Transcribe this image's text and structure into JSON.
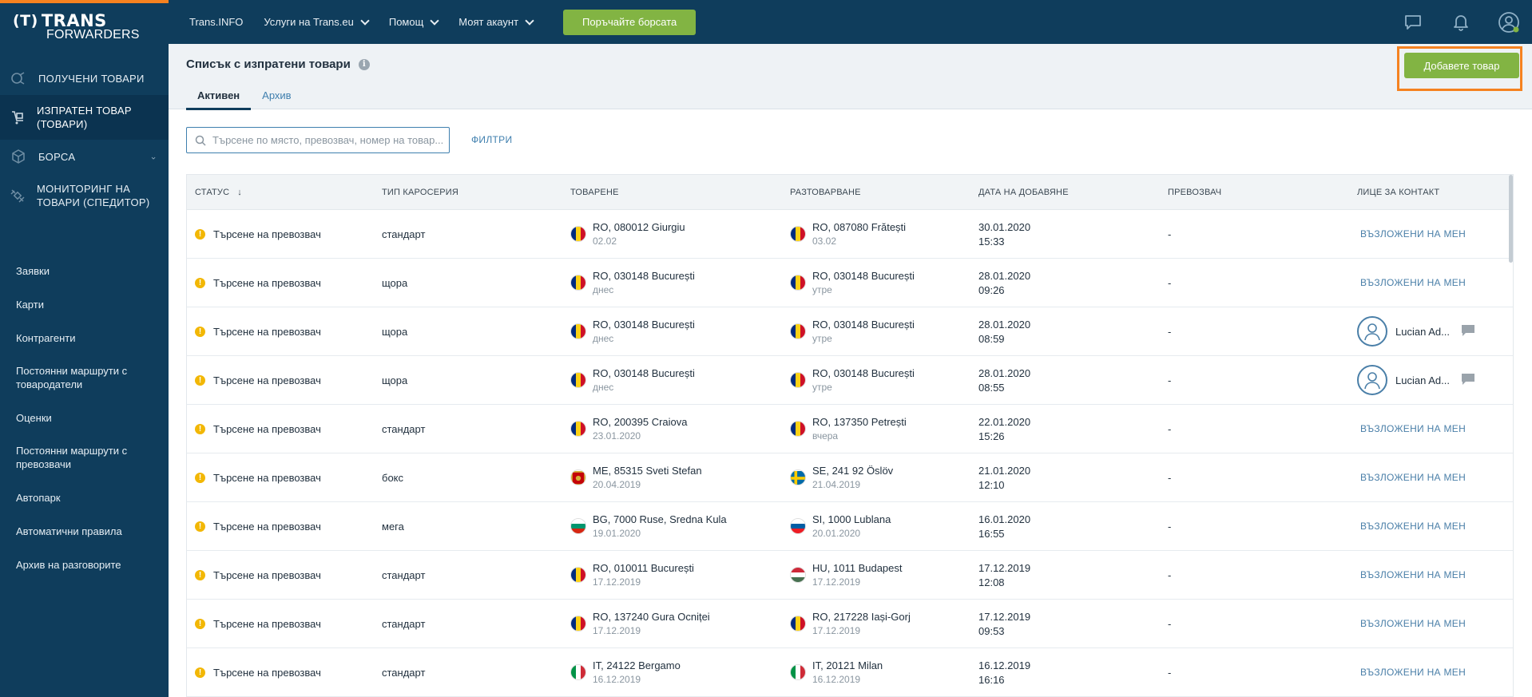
{
  "app": {
    "logo_line1": "TRANS",
    "logo_line2_prefix": "FOR",
    "logo_line2": "FORWARDERS",
    "accent_color": "#f58220",
    "brand_color": "#0f3d5c",
    "button_color": "#82b443"
  },
  "sidebar": {
    "items": [
      {
        "label": "ПОЛУЧЕНИ ТОВАРИ",
        "icon": "received-goods-icon"
      },
      {
        "label": "ИЗПРАТЕН ТОВАР (ТОВАРИ)",
        "icon": "sent-goods-icon"
      },
      {
        "label": "БОРСА",
        "icon": "box-icon"
      },
      {
        "label": "МОНИТОРИНГ НА ТОВАРИ (СПЕДИТОР)",
        "icon": "satellite-icon"
      }
    ],
    "links": [
      "Заявки",
      "Карти",
      "Контрагенти",
      "Постоянни маршрути с товародатели",
      "Оценки",
      "Постоянни маршрути с превозвачи",
      "Автопарк",
      "Автоматични правила",
      "Архив на разговорите"
    ]
  },
  "topbar": {
    "links": [
      "Trans.INFO",
      "Услуги на Trans.eu",
      "Помощ",
      "Моят акаунт"
    ],
    "exchange_button": "Поръчайте борсата"
  },
  "header": {
    "title": "Списък с изпратени товари",
    "tabs": [
      "Активен",
      "Архив"
    ],
    "add_button": "Добавете товар"
  },
  "search": {
    "placeholder": "Търсене по място, превозвач, номер на товар...",
    "filters_label": "ФИЛТРИ"
  },
  "table": {
    "columns": [
      "СТАТУС",
      "ТИП КАРОСЕРИЯ",
      "ТОВАРЕНЕ",
      "РАЗТОВАРВАНЕ",
      "ДАТА НА ДОБАВЯНЕ",
      "ПРЕВОЗВАЧ",
      "ЛИЦЕ ЗА КОНТАКТ"
    ],
    "sort_indicator": "↓",
    "rows": [
      {
        "status": "Търсене на превозвач",
        "body": "стандарт",
        "load_flag": "RO",
        "load": "RO, 080012 Giurgiu",
        "load_date": "02.02",
        "unload_flag": "RO",
        "unload": "RO, 087080 Frătești",
        "unload_date": "03.02",
        "date": "30.01.2020",
        "time": "15:33",
        "carrier": "-",
        "contact": "ВЪЗЛОЖЕНИ НА МЕН"
      },
      {
        "status": "Търсене на превозвач",
        "body": "щора",
        "load_flag": "RO",
        "load": "RO, 030148 București",
        "load_date": "днес",
        "unload_flag": "RO",
        "unload": "RO, 030148 București",
        "unload_date": "утре",
        "date": "28.01.2020",
        "time": "09:26",
        "carrier": "-",
        "contact": "ВЪЗЛОЖЕНИ НА МЕН"
      },
      {
        "status": "Търсене на превозвач",
        "body": "щора",
        "load_flag": "RO",
        "load": "RO, 030148 București",
        "load_date": "днес",
        "unload_flag": "RO",
        "unload": "RO, 030148 București",
        "unload_date": "утре",
        "date": "28.01.2020",
        "time": "08:59",
        "carrier": "-",
        "contact": "Lucian Ad..."
      },
      {
        "status": "Търсене на превозвач",
        "body": "щора",
        "load_flag": "RO",
        "load": "RO, 030148 București",
        "load_date": "днес",
        "unload_flag": "RO",
        "unload": "RO, 030148 București",
        "unload_date": "утре",
        "date": "28.01.2020",
        "time": "08:55",
        "carrier": "-",
        "contact": "Lucian Ad..."
      },
      {
        "status": "Търсене на превозвач",
        "body": "стандарт",
        "load_flag": "RO",
        "load": "RO, 200395 Craiova",
        "load_date": "23.01.2020",
        "unload_flag": "RO",
        "unload": "RO, 137350 Petrești",
        "unload_date": "вчера",
        "date": "22.01.2020",
        "time": "15:26",
        "carrier": "-",
        "contact": "ВЪЗЛОЖЕНИ НА МЕН"
      },
      {
        "status": "Търсене на превозвач",
        "body": "бокс",
        "load_flag": "ME",
        "load": "ME, 85315 Sveti Stefan",
        "load_date": "20.04.2019",
        "unload_flag": "SE",
        "unload": "SE, 241 92 Öslöv",
        "unload_date": "21.04.2019",
        "date": "21.01.2020",
        "time": "12:10",
        "carrier": "-",
        "contact": "ВЪЗЛОЖЕНИ НА МЕН"
      },
      {
        "status": "Търсене на превозвач",
        "body": "мега",
        "load_flag": "BG",
        "load": "BG, 7000 Ruse, Sredna Kula",
        "load_date": "19.01.2020",
        "unload_flag": "SI",
        "unload": "SI, 1000 Lublana",
        "unload_date": "20.01.2020",
        "date": "16.01.2020",
        "time": "16:55",
        "carrier": "-",
        "contact": "ВЪЗЛОЖЕНИ НА МЕН"
      },
      {
        "status": "Търсене на превозвач",
        "body": "стандарт",
        "load_flag": "RO",
        "load": "RO, 010011 București",
        "load_date": "17.12.2019",
        "unload_flag": "HU",
        "unload": "HU, 1011 Budapest",
        "unload_date": "17.12.2019",
        "date": "17.12.2019",
        "time": "12:08",
        "carrier": "-",
        "contact": "ВЪЗЛОЖЕНИ НА МЕН"
      },
      {
        "status": "Търсене на превозвач",
        "body": "стандарт",
        "load_flag": "RO",
        "load": "RO, 137240 Gura Ocniței",
        "load_date": "17.12.2019",
        "unload_flag": "RO",
        "unload": "RO, 217228 Iași-Gorj",
        "unload_date": "17.12.2019",
        "date": "17.12.2019",
        "time": "09:53",
        "carrier": "-",
        "contact": "ВЪЗЛОЖЕНИ НА МЕН"
      },
      {
        "status": "Търсене на превозвач",
        "body": "стандарт",
        "load_flag": "IT",
        "load": "IT, 24122 Bergamo",
        "load_date": "16.12.2019",
        "unload_flag": "IT",
        "unload": "IT, 20121 Milan",
        "unload_date": "16.12.2019",
        "date": "16.12.2019",
        "time": "16:16",
        "carrier": "-",
        "contact": "ВЪЗЛОЖЕНИ НА МЕН"
      }
    ]
  }
}
